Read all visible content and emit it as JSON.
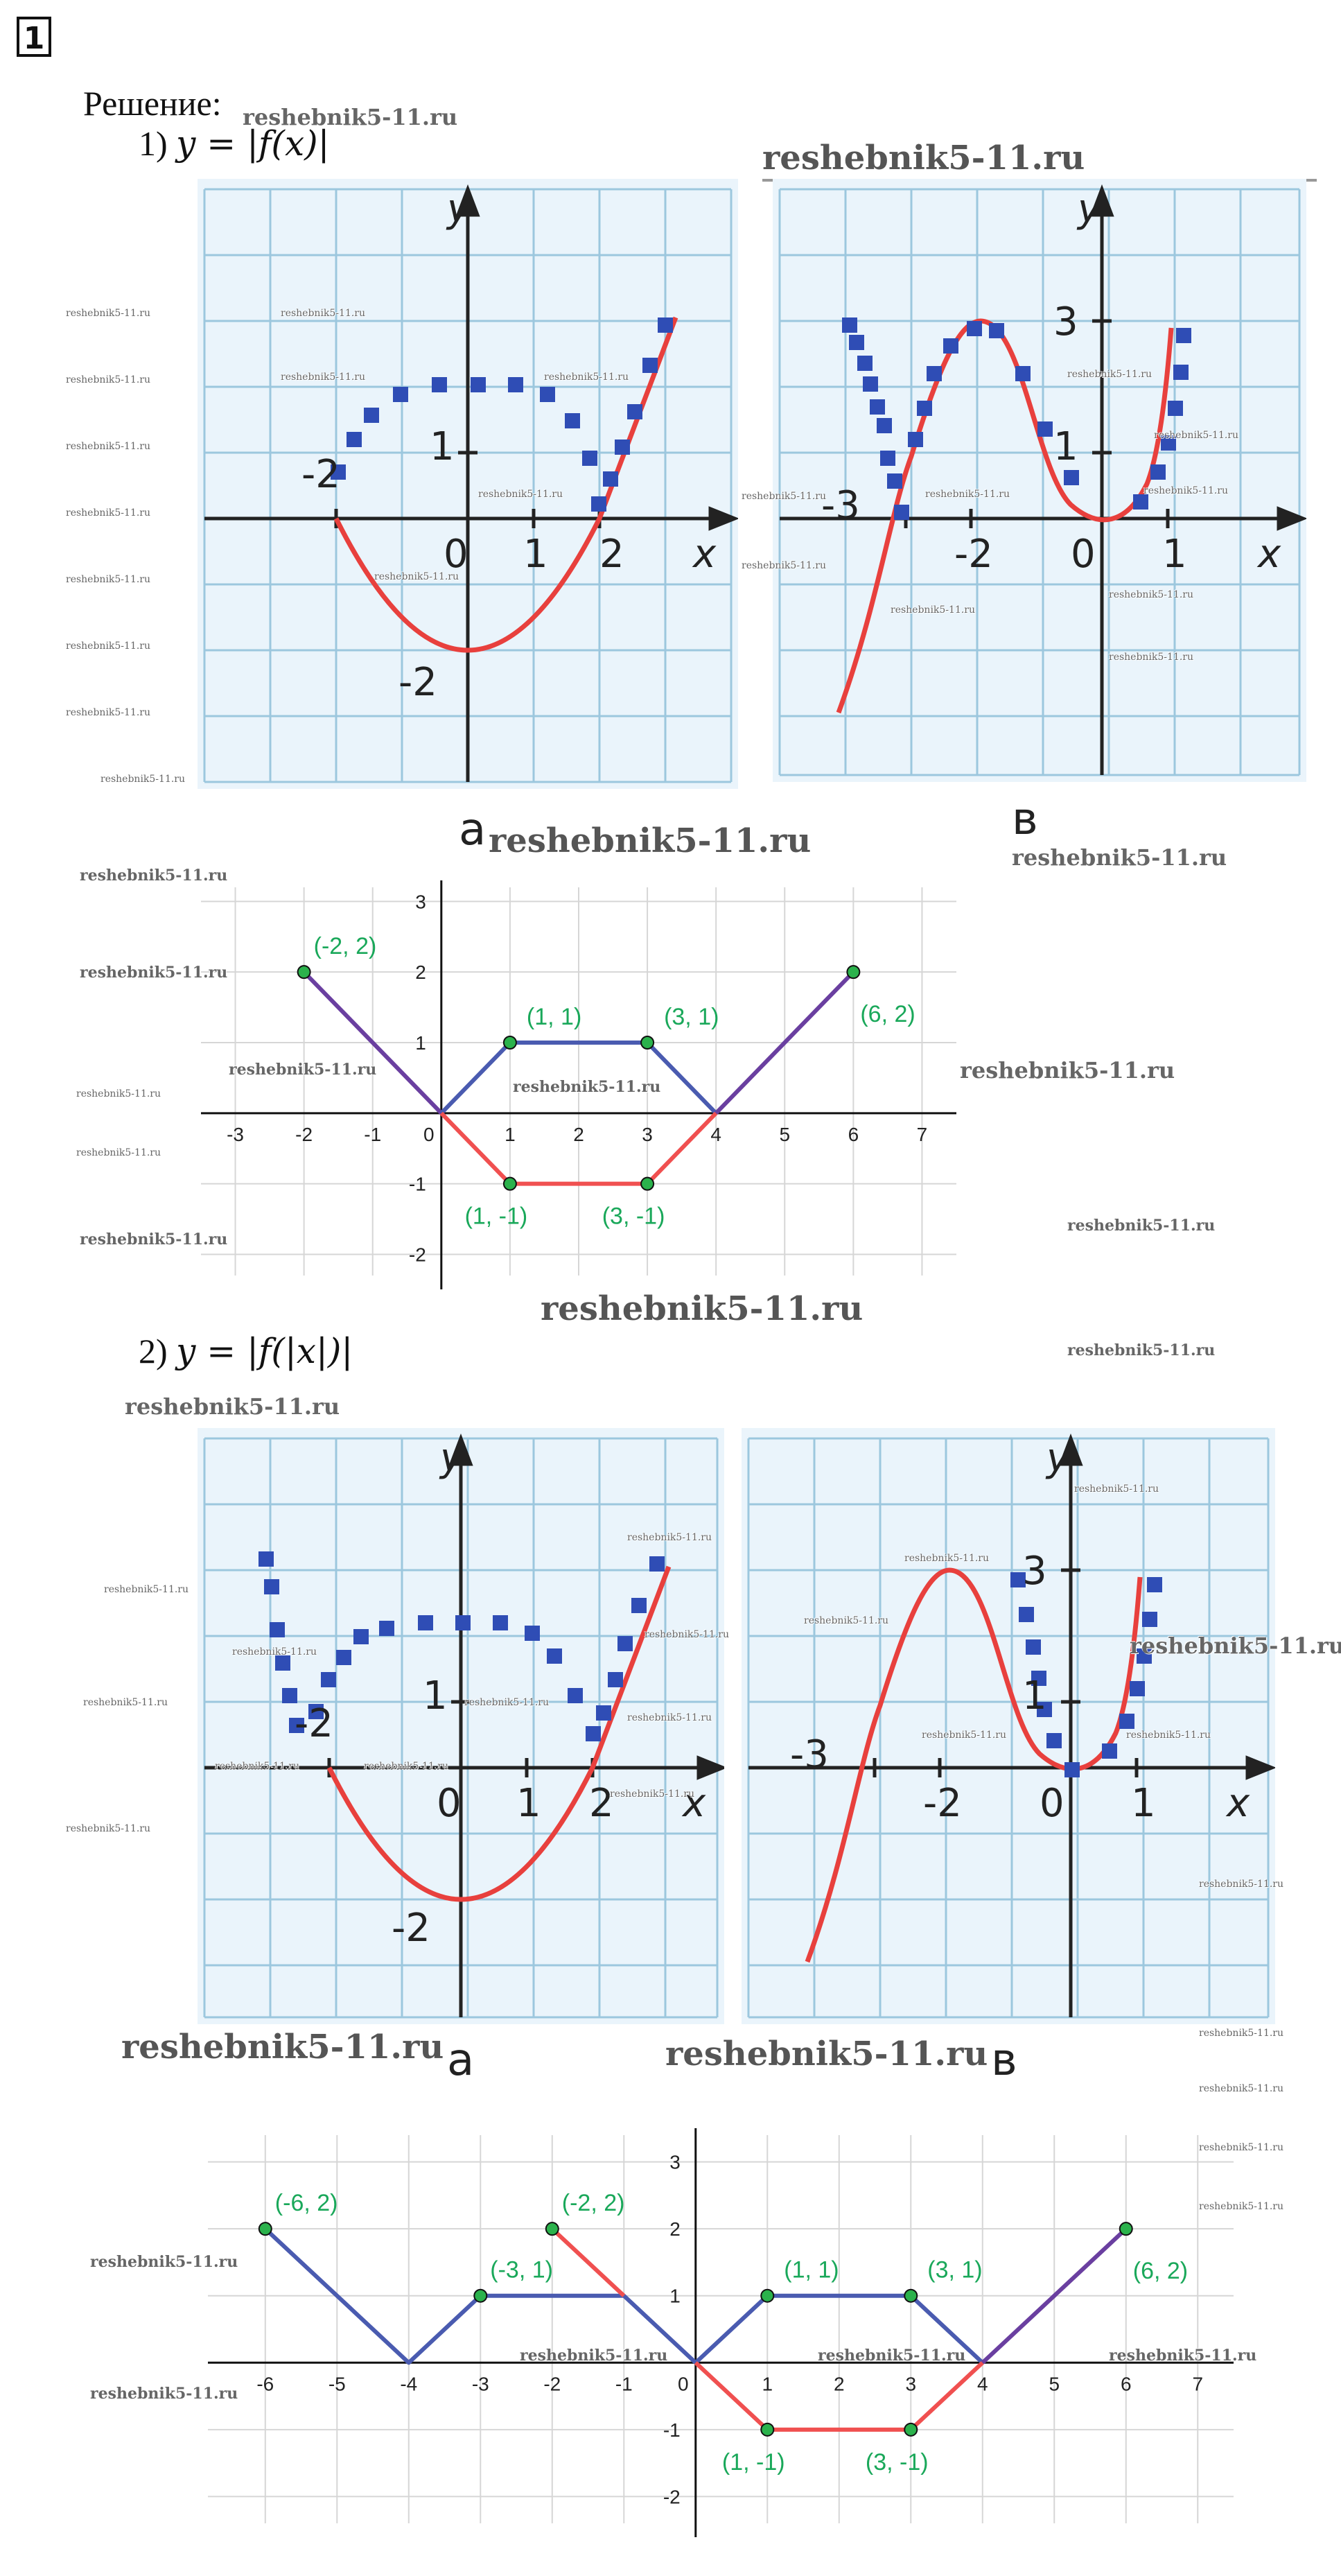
{
  "problem_number": "1",
  "heading": "Решение:",
  "part1": {
    "label": "1)",
    "formula": "y = |f(x)|"
  },
  "part2": {
    "label": "2)",
    "formula": "y = |f(|x|)|"
  },
  "panel_letters": {
    "a": "а",
    "v": "в"
  },
  "axis_names": {
    "x": "x",
    "y": "y"
  },
  "tick_text": {
    "neg2": "-2",
    "neg3": "-3",
    "zero": "0",
    "one": "1",
    "two": "2",
    "three": "3"
  },
  "watermark": "reshebnik5-11.ru",
  "colors": {
    "grid": "#9cc7de",
    "curve": "#e8403d",
    "squares": "#2f4db5",
    "graph_blue": "#4a5bb0",
    "graph_red": "#f05050",
    "graph_purple": "#6a3fa0",
    "point_fill": "#2bb24c",
    "label_green": "#1aa85a"
  },
  "chart_data": [
    {
      "type": "line",
      "title": "",
      "xlim": [
        -3.5,
        7.5
      ],
      "ylim": [
        -2.3,
        3.2
      ],
      "x_ticks": [
        -3,
        -2,
        -1,
        0,
        1,
        2,
        3,
        4,
        5,
        6,
        7
      ],
      "y_ticks": [
        -2,
        -1,
        1,
        2,
        3
      ],
      "series": [
        {
          "color": "purple",
          "points": [
            [
              -2,
              2
            ],
            [
              0,
              0
            ]
          ]
        },
        {
          "color": "blue",
          "points": [
            [
              0,
              0
            ],
            [
              1,
              1
            ],
            [
              3,
              1
            ],
            [
              4,
              0
            ]
          ]
        },
        {
          "color": "red",
          "points": [
            [
              0,
              0
            ],
            [
              1,
              -1
            ],
            [
              3,
              -1
            ],
            [
              4,
              0
            ]
          ]
        },
        {
          "color": "purple",
          "points": [
            [
              4,
              0
            ],
            [
              6,
              2
            ]
          ]
        }
      ],
      "labeled_points": [
        {
          "x": -2,
          "y": 2,
          "label": "(-2, 2)"
        },
        {
          "x": 1,
          "y": 1,
          "label": "(1, 1)"
        },
        {
          "x": 3,
          "y": 1,
          "label": "(3, 1)"
        },
        {
          "x": 6,
          "y": 2,
          "label": "(6, 2)"
        },
        {
          "x": 1,
          "y": -1,
          "label": "(1, -1)"
        },
        {
          "x": 3,
          "y": -1,
          "label": "(3, -1)"
        }
      ]
    },
    {
      "type": "line",
      "title": "",
      "xlim": [
        -6.8,
        7.5
      ],
      "ylim": [
        -2.4,
        3.4
      ],
      "x_ticks": [
        -6,
        -5,
        -4,
        -3,
        -2,
        -1,
        0,
        1,
        2,
        3,
        4,
        5,
        6,
        7
      ],
      "y_ticks": [
        -2,
        -1,
        1,
        2,
        3
      ],
      "series": [
        {
          "color": "blue",
          "points": [
            [
              -6,
              2
            ],
            [
              -4,
              0
            ],
            [
              -3,
              1
            ],
            [
              -1,
              1
            ],
            [
              0,
              0
            ]
          ]
        },
        {
          "color": "red",
          "points": [
            [
              -2,
              2
            ],
            [
              -1,
              1
            ]
          ]
        },
        {
          "color": "blue",
          "points": [
            [
              0,
              0
            ],
            [
              1,
              1
            ],
            [
              3,
              1
            ],
            [
              4,
              0
            ]
          ]
        },
        {
          "color": "red",
          "points": [
            [
              0,
              0
            ],
            [
              1,
              -1
            ],
            [
              3,
              -1
            ],
            [
              4,
              0
            ]
          ]
        },
        {
          "color": "purple",
          "points": [
            [
              4,
              0
            ],
            [
              6,
              2
            ]
          ]
        }
      ],
      "labeled_points": [
        {
          "x": -6,
          "y": 2,
          "label": "(-6, 2)"
        },
        {
          "x": -3,
          "y": 1,
          "label": "(-3, 1)"
        },
        {
          "x": -2,
          "y": 2,
          "label": "(-2, 2)"
        },
        {
          "x": 1,
          "y": 1,
          "label": "(1, 1)"
        },
        {
          "x": 3,
          "y": 1,
          "label": "(3, 1)"
        },
        {
          "x": 6,
          "y": 2,
          "label": "(6, 2)"
        },
        {
          "x": 1,
          "y": -1,
          "label": "(1, -1)"
        },
        {
          "x": 3,
          "y": -1,
          "label": "(3, -1)"
        }
      ]
    }
  ]
}
